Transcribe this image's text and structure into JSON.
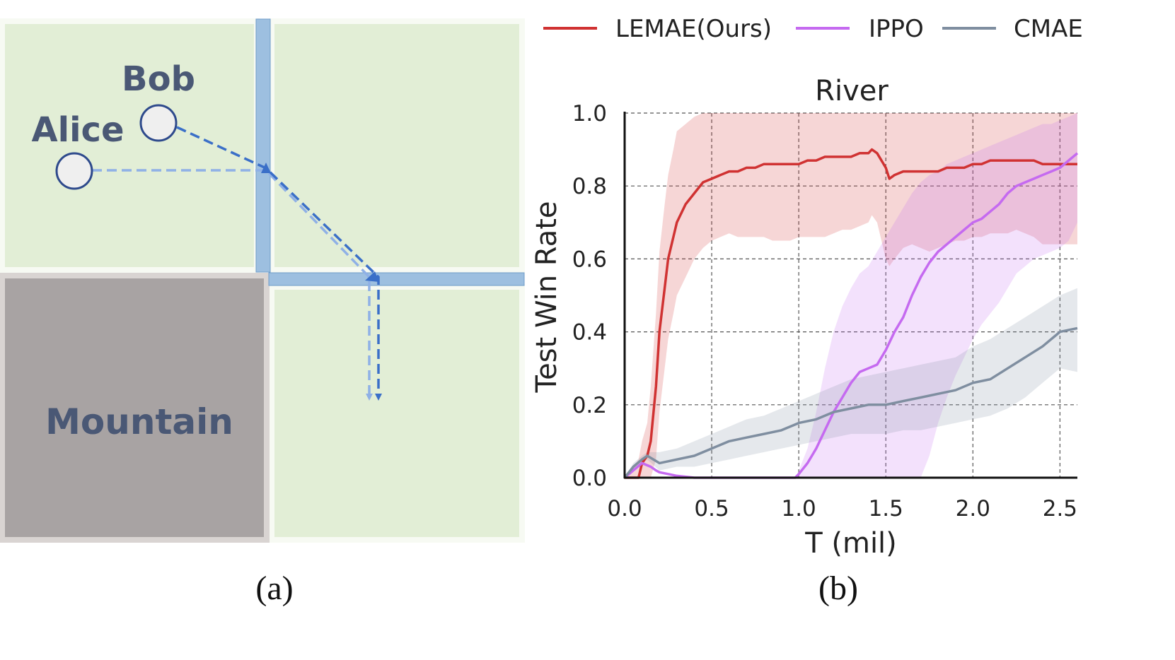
{
  "panel_a": {
    "caption": "(a)",
    "agents": [
      {
        "name": "Alice"
      },
      {
        "name": "Bob"
      }
    ],
    "terrain_label": "Mountain",
    "colors": {
      "grass": "#e2eed6",
      "grass_border": "#ffffff",
      "river": "#9dbfe0",
      "mountain": "#a8a3a3",
      "text": "#4a5875",
      "agent_fill": "#efefef",
      "agent_stroke": "#2e4a8c",
      "path_bob": "#3a6fc8",
      "path_alice": "#8fb0e6"
    }
  },
  "panel_b": {
    "caption": "(b)",
    "legend": [
      {
        "label": "LEMAE(Ours)",
        "color": "#d03232"
      },
      {
        "label": "IPPO",
        "color": "#c56af0"
      },
      {
        "label": "CMAE",
        "color": "#7f8ea0"
      }
    ]
  },
  "chart_data": {
    "type": "line",
    "title": "River",
    "xlabel": "T (mil)",
    "ylabel": "Test Win Rate",
    "xlim": [
      0.0,
      2.6
    ],
    "ylim": [
      0.0,
      1.0
    ],
    "xticks": [
      "0.0",
      "0.5",
      "1.0",
      "1.5",
      "2.0",
      "2.5"
    ],
    "yticks": [
      "0.0",
      "0.2",
      "0.4",
      "0.6",
      "0.8",
      "1.0"
    ],
    "grid": true,
    "series": [
      {
        "name": "LEMAE(Ours)",
        "color": "#d03232",
        "x": [
          0.0,
          0.08,
          0.1,
          0.13,
          0.15,
          0.18,
          0.2,
          0.23,
          0.25,
          0.28,
          0.3,
          0.35,
          0.4,
          0.45,
          0.5,
          0.55,
          0.6,
          0.65,
          0.7,
          0.75,
          0.8,
          0.85,
          0.9,
          0.95,
          1.0,
          1.05,
          1.1,
          1.15,
          1.2,
          1.25,
          1.3,
          1.35,
          1.4,
          1.42,
          1.45,
          1.5,
          1.52,
          1.55,
          1.6,
          1.65,
          1.7,
          1.75,
          1.8,
          1.85,
          1.9,
          1.95,
          2.0,
          2.05,
          2.1,
          2.15,
          2.2,
          2.25,
          2.3,
          2.35,
          2.4,
          2.45,
          2.5,
          2.55,
          2.6
        ],
        "y": [
          0.0,
          0.0,
          0.04,
          0.06,
          0.1,
          0.25,
          0.4,
          0.52,
          0.6,
          0.66,
          0.7,
          0.75,
          0.78,
          0.81,
          0.82,
          0.83,
          0.84,
          0.84,
          0.85,
          0.85,
          0.86,
          0.86,
          0.86,
          0.86,
          0.86,
          0.87,
          0.87,
          0.88,
          0.88,
          0.88,
          0.88,
          0.89,
          0.89,
          0.9,
          0.89,
          0.85,
          0.82,
          0.83,
          0.84,
          0.84,
          0.84,
          0.84,
          0.84,
          0.85,
          0.85,
          0.85,
          0.86,
          0.86,
          0.87,
          0.87,
          0.87,
          0.87,
          0.87,
          0.87,
          0.86,
          0.86,
          0.86,
          0.86,
          0.86
        ],
        "upper": [
          0.0,
          0.05,
          0.1,
          0.15,
          0.25,
          0.45,
          0.62,
          0.75,
          0.83,
          0.9,
          0.95,
          0.97,
          0.99,
          1.0,
          1.0,
          1.0,
          1.0,
          1.0,
          1.0,
          1.0,
          1.0,
          1.0,
          1.0,
          1.0,
          1.0,
          1.0,
          1.0,
          1.0,
          1.0,
          1.0,
          1.0,
          1.0,
          1.0,
          1.0,
          1.0,
          1.0,
          1.0,
          1.0,
          1.0,
          1.0,
          1.0,
          1.0,
          1.0,
          1.0,
          1.0,
          1.0,
          1.0,
          1.0,
          1.0,
          1.0,
          1.0,
          1.0,
          1.0,
          1.0,
          1.0,
          1.0,
          1.0,
          1.0,
          1.0
        ],
        "lower": [
          0.0,
          0.0,
          0.0,
          0.0,
          0.0,
          0.05,
          0.18,
          0.3,
          0.38,
          0.45,
          0.5,
          0.55,
          0.6,
          0.63,
          0.65,
          0.66,
          0.67,
          0.66,
          0.66,
          0.66,
          0.66,
          0.65,
          0.65,
          0.65,
          0.66,
          0.66,
          0.66,
          0.66,
          0.67,
          0.68,
          0.68,
          0.69,
          0.7,
          0.72,
          0.7,
          0.6,
          0.58,
          0.6,
          0.63,
          0.64,
          0.63,
          0.62,
          0.63,
          0.64,
          0.65,
          0.65,
          0.66,
          0.66,
          0.67,
          0.67,
          0.67,
          0.68,
          0.67,
          0.66,
          0.64,
          0.64,
          0.64,
          0.64,
          0.64
        ]
      },
      {
        "name": "IPPO",
        "color": "#c56af0",
        "x": [
          0.0,
          0.05,
          0.1,
          0.15,
          0.18,
          0.2,
          0.25,
          0.3,
          0.4,
          0.5,
          0.6,
          0.7,
          0.8,
          0.9,
          0.98,
          1.0,
          1.05,
          1.1,
          1.15,
          1.2,
          1.25,
          1.3,
          1.35,
          1.4,
          1.45,
          1.5,
          1.55,
          1.6,
          1.65,
          1.7,
          1.75,
          1.8,
          1.85,
          1.9,
          1.95,
          2.0,
          2.05,
          2.1,
          2.15,
          2.2,
          2.25,
          2.3,
          2.35,
          2.4,
          2.45,
          2.5,
          2.55,
          2.6
        ],
        "y": [
          0.0,
          0.02,
          0.04,
          0.03,
          0.02,
          0.015,
          0.01,
          0.005,
          0.0,
          0.0,
          0.0,
          0.0,
          0.0,
          0.0,
          0.0,
          0.01,
          0.04,
          0.08,
          0.13,
          0.18,
          0.22,
          0.26,
          0.29,
          0.3,
          0.31,
          0.35,
          0.4,
          0.44,
          0.5,
          0.55,
          0.59,
          0.62,
          0.64,
          0.66,
          0.68,
          0.7,
          0.71,
          0.73,
          0.75,
          0.78,
          0.8,
          0.81,
          0.82,
          0.83,
          0.84,
          0.85,
          0.87,
          0.89
        ],
        "upper": [
          0.0,
          0.02,
          0.04,
          0.03,
          0.02,
          0.015,
          0.01,
          0.005,
          0.0,
          0.0,
          0.0,
          0.0,
          0.0,
          0.0,
          0.0,
          0.02,
          0.08,
          0.18,
          0.3,
          0.4,
          0.47,
          0.52,
          0.56,
          0.58,
          0.62,
          0.66,
          0.7,
          0.74,
          0.78,
          0.81,
          0.83,
          0.84,
          0.86,
          0.87,
          0.88,
          0.89,
          0.9,
          0.91,
          0.92,
          0.93,
          0.94,
          0.95,
          0.96,
          0.97,
          0.97,
          0.98,
          0.99,
          1.0
        ],
        "lower": [
          0.0,
          0.02,
          0.04,
          0.03,
          0.02,
          0.015,
          0.01,
          0.005,
          0.0,
          0.0,
          0.0,
          0.0,
          0.0,
          0.0,
          0.0,
          0.0,
          0.0,
          0.0,
          0.0,
          0.0,
          0.0,
          0.0,
          0.0,
          0.0,
          0.0,
          0.0,
          0.0,
          0.0,
          0.0,
          0.0,
          0.06,
          0.15,
          0.22,
          0.28,
          0.33,
          0.38,
          0.42,
          0.45,
          0.48,
          0.52,
          0.56,
          0.58,
          0.6,
          0.61,
          0.62,
          0.63,
          0.65,
          0.7
        ]
      },
      {
        "name": "CMAE",
        "color": "#7f8ea0",
        "x": [
          0.0,
          0.05,
          0.1,
          0.13,
          0.2,
          0.3,
          0.4,
          0.5,
          0.6,
          0.7,
          0.8,
          0.9,
          1.0,
          1.1,
          1.2,
          1.3,
          1.4,
          1.5,
          1.6,
          1.7,
          1.8,
          1.9,
          2.0,
          2.1,
          2.2,
          2.3,
          2.4,
          2.5,
          2.6
        ],
        "y": [
          0.0,
          0.03,
          0.05,
          0.06,
          0.04,
          0.05,
          0.06,
          0.08,
          0.1,
          0.11,
          0.12,
          0.13,
          0.15,
          0.16,
          0.18,
          0.19,
          0.2,
          0.2,
          0.21,
          0.22,
          0.23,
          0.24,
          0.26,
          0.27,
          0.3,
          0.33,
          0.36,
          0.4,
          0.41
        ],
        "upper": [
          0.0,
          0.04,
          0.06,
          0.07,
          0.07,
          0.08,
          0.1,
          0.12,
          0.14,
          0.16,
          0.17,
          0.19,
          0.21,
          0.23,
          0.25,
          0.27,
          0.28,
          0.29,
          0.3,
          0.31,
          0.32,
          0.33,
          0.36,
          0.38,
          0.41,
          0.44,
          0.47,
          0.5,
          0.52
        ],
        "lower": [
          0.0,
          0.02,
          0.04,
          0.05,
          0.02,
          0.03,
          0.03,
          0.04,
          0.05,
          0.06,
          0.07,
          0.08,
          0.09,
          0.1,
          0.11,
          0.12,
          0.12,
          0.12,
          0.13,
          0.13,
          0.14,
          0.15,
          0.16,
          0.17,
          0.19,
          0.22,
          0.26,
          0.3,
          0.29
        ]
      }
    ]
  }
}
